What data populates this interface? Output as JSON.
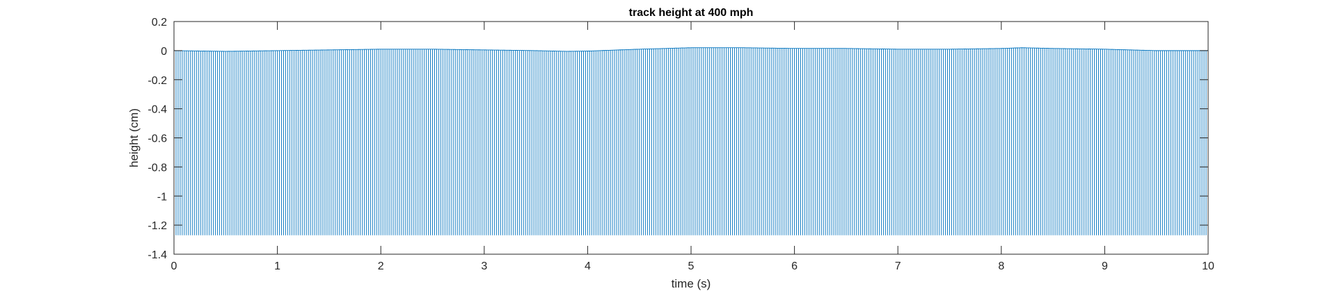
{
  "chart_data": {
    "type": "line",
    "title": "track height at 400 mph",
    "xlabel": "time (s)",
    "ylabel": "height (cm)",
    "xlim": [
      0,
      10
    ],
    "ylim": [
      -1.4,
      0.2
    ],
    "x_ticks": [
      0,
      1,
      2,
      3,
      4,
      5,
      6,
      7,
      8,
      9,
      10
    ],
    "x_tick_labels": [
      "0",
      "1",
      "2",
      "3",
      "4",
      "5",
      "6",
      "7",
      "8",
      "9",
      "10"
    ],
    "y_ticks": [
      0.2,
      0,
      -0.2,
      -0.4,
      -0.6,
      -0.8,
      -1,
      -1.2,
      -1.4
    ],
    "y_tick_labels": [
      "0.2",
      "0",
      "-0.2",
      "-0.4",
      "-0.6",
      "-0.8",
      "-1",
      "-1.2",
      "-1.4"
    ],
    "grid": false,
    "box": true,
    "line_color": "#0072BD",
    "series": [
      {
        "spike_min": -1.27,
        "baseline_points": [
          {
            "x": 0.0,
            "y": 0.0
          },
          {
            "x": 0.5,
            "y": -0.005
          },
          {
            "x": 1.0,
            "y": 0.0
          },
          {
            "x": 1.5,
            "y": 0.005
          },
          {
            "x": 2.0,
            "y": 0.01
          },
          {
            "x": 2.5,
            "y": 0.01
          },
          {
            "x": 3.0,
            "y": 0.005
          },
          {
            "x": 3.5,
            "y": 0.0
          },
          {
            "x": 3.8,
            "y": -0.005
          },
          {
            "x": 4.0,
            "y": -0.003
          },
          {
            "x": 4.5,
            "y": 0.01
          },
          {
            "x": 5.0,
            "y": 0.02
          },
          {
            "x": 5.5,
            "y": 0.02
          },
          {
            "x": 6.0,
            "y": 0.015
          },
          {
            "x": 6.5,
            "y": 0.015
          },
          {
            "x": 7.0,
            "y": 0.01
          },
          {
            "x": 7.5,
            "y": 0.01
          },
          {
            "x": 8.0,
            "y": 0.015
          },
          {
            "x": 8.2,
            "y": 0.02
          },
          {
            "x": 8.5,
            "y": 0.015
          },
          {
            "x": 9.0,
            "y": 0.01
          },
          {
            "x": 9.5,
            "y": 0.0
          },
          {
            "x": 10.0,
            "y": 0.0
          }
        ]
      }
    ]
  }
}
